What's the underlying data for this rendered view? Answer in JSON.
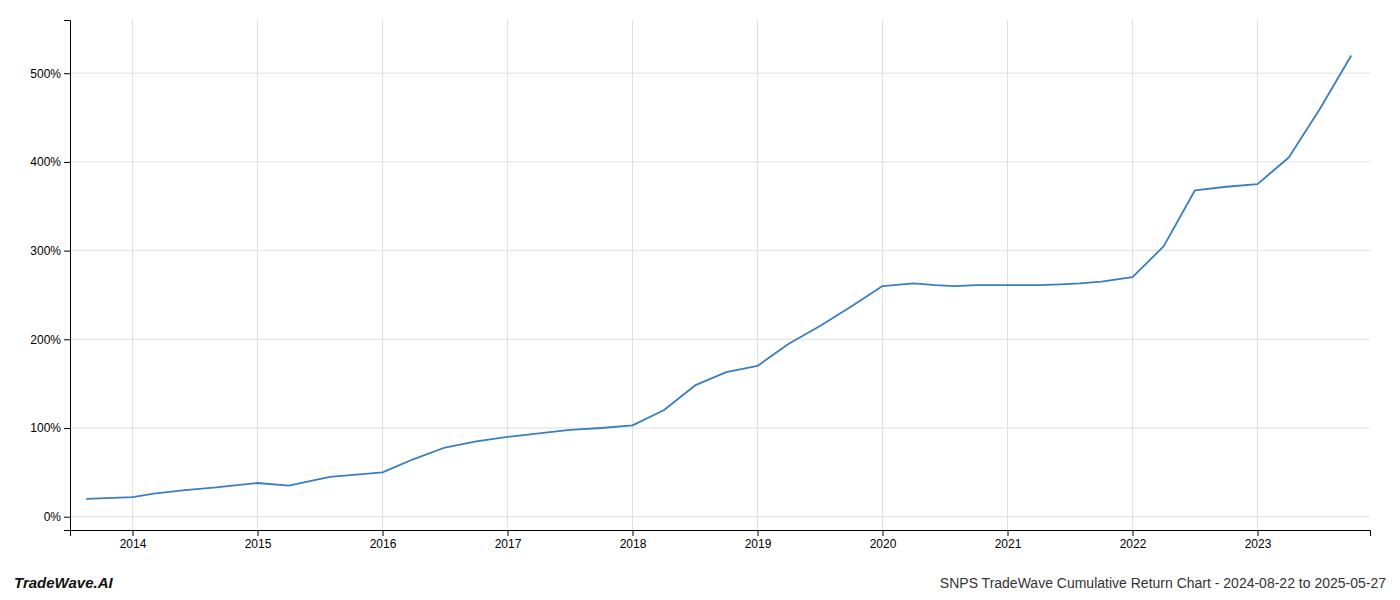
{
  "chart_data": {
    "type": "line",
    "title": "SNPS TradeWave Cumulative Return Chart - 2024-08-22 to 2025-05-27",
    "annotations": [
      "TradeWave.AI"
    ],
    "color": "#3a7ebf",
    "grid": true,
    "x": [
      2013.63,
      2014.0,
      2014.17,
      2014.42,
      2014.67,
      2015.0,
      2015.25,
      2015.58,
      2016.0,
      2016.25,
      2016.5,
      2016.75,
      2017.0,
      2017.25,
      2017.5,
      2017.75,
      2018.0,
      2018.25,
      2018.5,
      2018.75,
      2019.0,
      2019.25,
      2019.5,
      2019.75,
      2020.0,
      2020.25,
      2020.42,
      2020.58,
      2020.75,
      2021.0,
      2021.25,
      2021.42,
      2021.58,
      2021.75,
      2022.0,
      2022.25,
      2022.5,
      2022.75,
      2023.0,
      2023.25,
      2023.5,
      2023.75
    ],
    "values": [
      20,
      22,
      26,
      30,
      33,
      38,
      35,
      45,
      50,
      65,
      78,
      85,
      90,
      94,
      98,
      100,
      103,
      120,
      148,
      163,
      170,
      195,
      215,
      237,
      260,
      263,
      261,
      260,
      261,
      261,
      261,
      262,
      263,
      265,
      270,
      305,
      368,
      372,
      375,
      405,
      460,
      520
    ],
    "xlim": [
      2013.5,
      2023.9
    ],
    "xticks": [
      2014,
      2015,
      2016,
      2017,
      2018,
      2019,
      2020,
      2021,
      2022,
      2023
    ],
    "ylim": [
      -15,
      560
    ],
    "yticks": [
      {
        "value": 0,
        "label": "0%"
      },
      {
        "value": 100,
        "label": "100%"
      },
      {
        "value": 200,
        "label": "200%"
      },
      {
        "value": 300,
        "label": "300%"
      },
      {
        "value": 400,
        "label": "400%"
      },
      {
        "value": 500,
        "label": "500%"
      }
    ]
  }
}
